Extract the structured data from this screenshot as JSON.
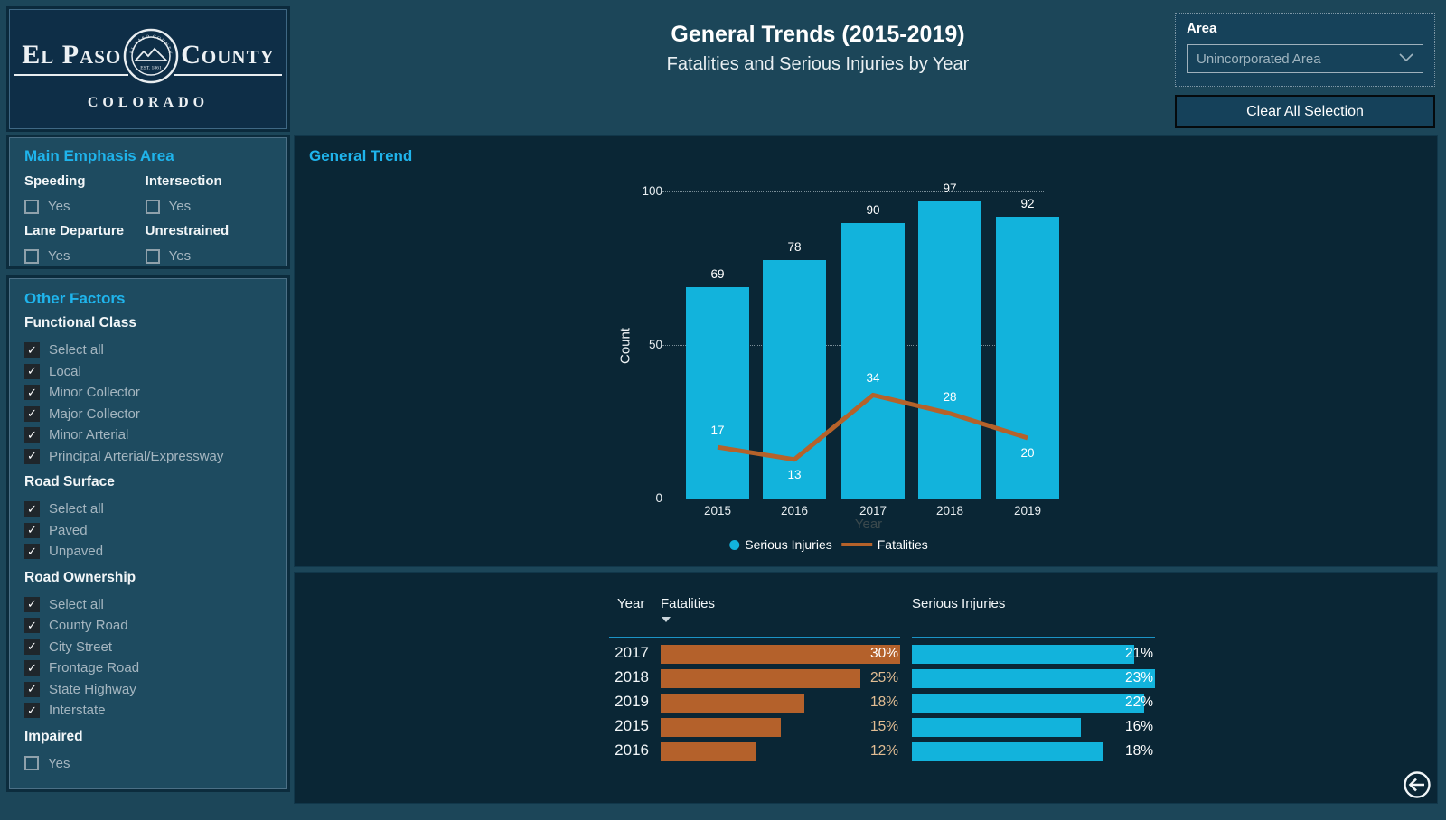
{
  "colors": {
    "page_bg": "#1C4659",
    "panel_bg": "#0A2635",
    "sidebar_bg": "#1E4B60",
    "accent_cyan": "#1FB4EC",
    "bar_cyan": "#12B3DC",
    "line_orange": "#B5622A",
    "table_orange": "#B4612B",
    "header_underline": "#1B93C6"
  },
  "logo": {
    "name_left": "El Paso",
    "name_right": "County",
    "state": "COLORADO",
    "seal_ring_text": "EL PASO COUNTY COLORADO",
    "seal_est": "EST. 1861"
  },
  "header": {
    "title": "General Trends (2015-2019)",
    "subtitle": "Fatalities and Serious Injuries by Year"
  },
  "area_panel": {
    "label": "Area",
    "selected_value": "Unincorporated Area",
    "clear_button_label": "Clear All Selection"
  },
  "main_emphasis": {
    "title": "Main Emphasis Area",
    "filters": [
      {
        "label": "Speeding",
        "option": "Yes",
        "checked": false
      },
      {
        "label": "Intersection",
        "option": "Yes",
        "checked": false
      },
      {
        "label": "Lane Departure",
        "option": "Yes",
        "checked": false
      },
      {
        "label": "Unrestrained",
        "option": "Yes",
        "checked": false
      }
    ]
  },
  "other_factors": {
    "title": "Other Factors",
    "groups": [
      {
        "label": "Functional Class",
        "options": [
          {
            "label": "Select all",
            "checked": true
          },
          {
            "label": "Local",
            "checked": true
          },
          {
            "label": "Minor Collector",
            "checked": true
          },
          {
            "label": "Major Collector",
            "checked": true
          },
          {
            "label": "Minor Arterial",
            "checked": true
          },
          {
            "label": "Principal Arterial/Expressway",
            "checked": true
          }
        ]
      },
      {
        "label": "Road Surface",
        "options": [
          {
            "label": "Select all",
            "checked": true
          },
          {
            "label": "Paved",
            "checked": true
          },
          {
            "label": "Unpaved",
            "checked": true
          }
        ]
      },
      {
        "label": "Road Ownership",
        "options": [
          {
            "label": "Select all",
            "checked": true
          },
          {
            "label": "County Road",
            "checked": true
          },
          {
            "label": "City Street",
            "checked": true
          },
          {
            "label": "Frontage Road",
            "checked": true
          },
          {
            "label": "State Highway",
            "checked": true
          },
          {
            "label": "Interstate",
            "checked": true
          }
        ]
      },
      {
        "label": "Impaired",
        "options": [
          {
            "label": "Yes",
            "checked": false
          }
        ]
      }
    ]
  },
  "chart_panel": {
    "title": "General Trend"
  },
  "chart_data": {
    "type": "combo-bar-line",
    "title": "General Trend",
    "categories": [
      "2015",
      "2016",
      "2017",
      "2018",
      "2019"
    ],
    "series": [
      {
        "name": "Serious Injuries",
        "type": "bar",
        "color": "#12B3DC",
        "values": [
          69,
          78,
          90,
          97,
          92
        ]
      },
      {
        "name": "Fatalities",
        "type": "line",
        "color": "#B5622A",
        "values": [
          17,
          13,
          34,
          28,
          20
        ]
      }
    ],
    "xlabel": "Year",
    "ylabel": "Count",
    "ylim": [
      0,
      100
    ],
    "yticks": [
      0,
      50,
      100
    ],
    "gridlines": "dotted-horizontal",
    "legend_position": "bottom"
  },
  "table": {
    "columns": [
      "Year",
      "Fatalities",
      "Serious Injuries"
    ],
    "sort": {
      "column": "Fatalities",
      "direction": "desc"
    },
    "fatalities_max_pct": 30,
    "serious_max_pct": 23,
    "rows": [
      {
        "year": "2017",
        "fatalities_pct": 30,
        "fatalities_label": "30%",
        "serious_pct": 21,
        "serious_label": "21%"
      },
      {
        "year": "2018",
        "fatalities_pct": 25,
        "fatalities_label": "25%",
        "serious_pct": 23,
        "serious_label": "23%"
      },
      {
        "year": "2019",
        "fatalities_pct": 18,
        "fatalities_label": "18%",
        "serious_pct": 22,
        "serious_label": "22%"
      },
      {
        "year": "2015",
        "fatalities_pct": 15,
        "fatalities_label": "15%",
        "serious_pct": 16,
        "serious_label": "16%"
      },
      {
        "year": "2016",
        "fatalities_pct": 12,
        "fatalities_label": "12%",
        "serious_pct": 18,
        "serious_label": "18%"
      }
    ]
  }
}
